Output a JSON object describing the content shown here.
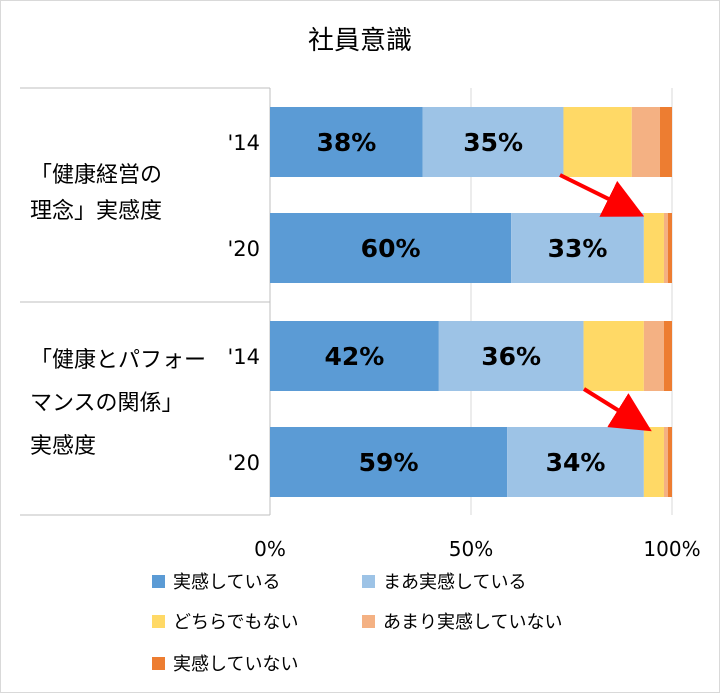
{
  "chart_data": {
    "type": "bar",
    "orientation": "horizontal",
    "stacked": "percent",
    "title": "社員意識",
    "groups": [
      {
        "label_lines": [
          "「健康経営の",
          "理念」実感度"
        ],
        "rows": [
          "'14",
          "'20"
        ]
      },
      {
        "label_lines": [
          "「健康とパフォー",
          "マンスの関係」",
          "実感度"
        ],
        "rows": [
          "'14",
          "'20"
        ]
      }
    ],
    "categories": [
      "'14",
      "'20",
      "'14",
      "'20"
    ],
    "series": [
      {
        "name": "実感している",
        "color": "#5b9bd5",
        "values": [
          38,
          60,
          42,
          59
        ]
      },
      {
        "name": "まあ実感している",
        "color": "#9dc3e6",
        "values": [
          35,
          33,
          36,
          34
        ]
      },
      {
        "name": "どちらでもない",
        "color": "#ffd966",
        "values": [
          17,
          5,
          15,
          5
        ]
      },
      {
        "name": "あまり実感していない",
        "color": "#f4b183",
        "values": [
          7,
          1,
          5,
          1
        ]
      },
      {
        "name": "実感していない",
        "color": "#ed7d31",
        "values": [
          3,
          1,
          2,
          1
        ]
      }
    ],
    "data_labels": [
      [
        "38%",
        "35%"
      ],
      [
        "60%",
        "33%"
      ],
      [
        "42%",
        "36%"
      ],
      [
        "59%",
        "34%"
      ]
    ],
    "xlim": [
      0,
      100
    ],
    "xticks": [
      "0%",
      "50%",
      "100%"
    ],
    "legend_position": "bottom",
    "annotations": "red arrows from '14 bars to '20 bars"
  }
}
